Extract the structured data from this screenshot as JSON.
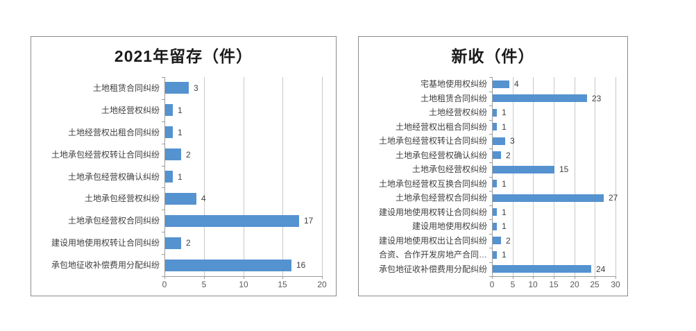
{
  "page": {
    "background": "#ffffff"
  },
  "style": {
    "bar_color": "#5592D0",
    "axis_color": "#9B9B9B",
    "gridline_color": "#C8C8C8",
    "box_border_color": "#8C8C8C",
    "title_color": "#1A1A1A",
    "label_color": "#3F3F3F",
    "value_label_color": "#3F3F3F",
    "tick_label_color": "#595959"
  },
  "chart_data": [
    {
      "type": "bar",
      "orientation": "horizontal",
      "title": "2021年留存（件）",
      "categories": [
        "土地租赁合同纠纷",
        "土地经营权纠纷",
        "土地经营权出租合同纠纷",
        "土地承包经营权转让合同纠纷",
        "土地承包经营权确认纠纷",
        "土地承包经营权纠纷",
        "土地承包经营权合同纠纷",
        "建设用地使用权转让合同纠纷",
        "承包地征收补偿费用分配纠纷"
      ],
      "values": [
        3,
        1,
        1,
        2,
        1,
        4,
        17,
        2,
        16
      ],
      "x_ticks": [
        0,
        5,
        10,
        15,
        20
      ],
      "xlim": [
        0,
        20
      ],
      "xlabel": "",
      "ylabel": "",
      "grid": "vertical gridlines on",
      "legend": "none",
      "data_labels": true
    },
    {
      "type": "bar",
      "orientation": "horizontal",
      "title": "新收（件）",
      "categories": [
        "宅基地使用权纠纷",
        "土地租赁合同纠纷",
        "土地经营权纠纷",
        "土地经营权出租合同纠纷",
        "土地承包经营权转让合同纠纷",
        "土地承包经营权确认纠纷",
        "土地承包经营权纠纷",
        "土地承包经营权互换合同纠纷",
        "土地承包经营权合同纠纷",
        "建设用地使用权转让合同纠纷",
        "建设用地使用权纠纷",
        "建设用地使用权出让合同纠纷",
        "合资、合作开发房地产合同…",
        "承包地征收补偿费用分配纠纷"
      ],
      "values": [
        4,
        23,
        1,
        1,
        3,
        2,
        15,
        1,
        27,
        1,
        1,
        2,
        1,
        24
      ],
      "x_ticks": [
        0,
        5,
        10,
        15,
        20,
        25,
        30
      ],
      "xlim": [
        0,
        30
      ],
      "xlabel": "",
      "ylabel": "",
      "grid": "vertical gridlines on",
      "legend": "none",
      "data_labels": true
    }
  ]
}
